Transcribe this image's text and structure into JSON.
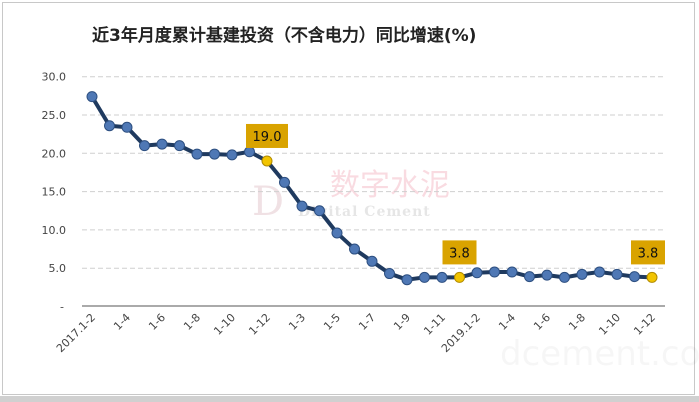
{
  "chart_data": {
    "type": "line",
    "title": "近3年月度累计基建投资（不含电力）同比增速(%)",
    "xlabel": "",
    "ylabel": "",
    "ylim": [
      0,
      30
    ],
    "yticks": [
      0,
      5,
      10,
      15,
      20,
      25,
      30
    ],
    "ytick_labels": [
      "-",
      "5.0",
      "10.0",
      "15.0",
      "20.0",
      "25.0",
      "30.0"
    ],
    "grid": true,
    "categories": [
      "2017.1-2",
      "",
      "1-4",
      "",
      "1-6",
      "",
      "1-8",
      "",
      "1-10",
      "",
      "1-12",
      "",
      "1-3",
      "",
      "1-5",
      "",
      "1-7",
      "",
      "1-9",
      "",
      "1-11",
      "",
      "2019.1-2",
      "",
      "1-4",
      "",
      "1-6",
      "",
      "1-8",
      "",
      "1-10",
      "",
      "1-12"
    ],
    "values": [
      27.4,
      23.6,
      23.4,
      21.0,
      21.2,
      21.0,
      19.9,
      19.9,
      19.8,
      20.2,
      19.0,
      16.2,
      13.1,
      12.5,
      9.6,
      7.5,
      5.9,
      4.3,
      3.5,
      3.8,
      3.8,
      3.8,
      4.4,
      4.5,
      4.5,
      3.9,
      4.1,
      3.8,
      4.2,
      4.5,
      4.2,
      3.9,
      3.8
    ],
    "highlighted_points": [
      {
        "index": 10,
        "label": "19.0"
      },
      {
        "index": 21,
        "label": "3.8"
      },
      {
        "index": 32,
        "label": "3.8"
      }
    ],
    "colors": {
      "line": "#1f3a5f",
      "marker": "#4f78b5",
      "highlight": "#f2c400",
      "label_bg": "#d9a300"
    }
  },
  "watermark": {
    "cn": "数字水泥",
    "en": "Digital Cement",
    "site": "dcement.com",
    "logo": "DC"
  }
}
